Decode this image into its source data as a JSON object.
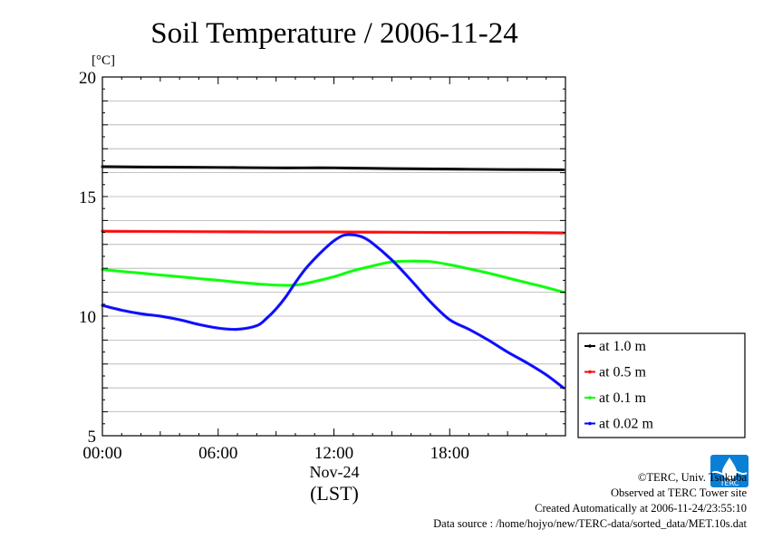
{
  "chart_data": {
    "type": "line",
    "title": "Soil Temperature / 2006-11-24",
    "ylabel": "[°C]",
    "xlabel": "(LST)",
    "x_date_label": "Nov-24",
    "xlim": [
      0,
      24
    ],
    "ylim": [
      5,
      20
    ],
    "x_ticks": [
      {
        "value": 0,
        "label": "00:00"
      },
      {
        "value": 6,
        "label": "06:00"
      },
      {
        "value": 12,
        "label": "12:00"
      },
      {
        "value": 18,
        "label": "18:00"
      }
    ],
    "y_ticks": [
      {
        "value": 5,
        "label": "5"
      },
      {
        "value": 10,
        "label": "10"
      },
      {
        "value": 15,
        "label": "15"
      },
      {
        "value": 20,
        "label": "20"
      }
    ],
    "grid": true,
    "legend_position": "right",
    "series": [
      {
        "name": "at 1.0 m",
        "color": "#000000",
        "x": [
          0,
          3,
          6,
          9,
          12,
          15,
          18,
          21,
          23.9
        ],
        "y": [
          16.25,
          16.23,
          16.22,
          16.2,
          16.2,
          16.17,
          16.15,
          16.13,
          16.12
        ]
      },
      {
        "name": "at 0.5 m",
        "color": "#ff0000",
        "x": [
          0,
          3,
          6,
          9,
          12,
          15,
          18,
          21,
          23.9
        ],
        "y": [
          13.55,
          13.54,
          13.53,
          13.52,
          13.52,
          13.51,
          13.5,
          13.5,
          13.48
        ]
      },
      {
        "name": "at 0.1 m",
        "color": "#00ff00",
        "x": [
          0,
          1,
          2,
          3,
          4,
          5,
          6,
          7,
          8,
          9,
          10,
          11,
          12,
          13,
          14,
          15,
          16,
          17,
          18,
          19,
          20,
          21,
          22,
          23,
          23.9
        ],
        "y": [
          11.95,
          11.87,
          11.8,
          11.72,
          11.65,
          11.57,
          11.5,
          11.42,
          11.35,
          11.3,
          11.3,
          11.45,
          11.65,
          11.9,
          12.1,
          12.27,
          12.3,
          12.28,
          12.15,
          11.98,
          11.8,
          11.6,
          11.4,
          11.2,
          11.0
        ]
      },
      {
        "name": "at 0.02 m",
        "color": "#0000ff",
        "x": [
          0,
          1,
          2,
          3,
          4,
          5,
          6,
          7,
          8,
          8.5,
          9,
          9.5,
          10,
          10.5,
          11,
          11.5,
          12,
          12.5,
          13,
          13.5,
          14,
          15,
          16,
          17,
          18,
          19,
          20,
          21,
          22,
          23,
          23.9
        ],
        "y": [
          10.45,
          10.25,
          10.1,
          10.0,
          9.85,
          9.65,
          9.5,
          9.45,
          9.6,
          9.9,
          10.3,
          10.8,
          11.4,
          11.95,
          12.4,
          12.8,
          13.15,
          13.38,
          13.4,
          13.3,
          13.05,
          12.35,
          11.5,
          10.6,
          9.85,
          9.45,
          9.0,
          8.5,
          8.05,
          7.55,
          7.0
        ]
      }
    ]
  },
  "footer": {
    "copyright": "©TERC, Univ. Tsukuba",
    "observed": "Observed at TERC Tower site",
    "created": "Created Automatically at 2006-11-24/23:55:10",
    "source": "Data source : /home/hojyo/new/TERC-data/sorted_data/MET.10s.dat"
  },
  "logo": {
    "name": "terc-logo",
    "text": "TERC",
    "color": "#0a7fd6"
  }
}
